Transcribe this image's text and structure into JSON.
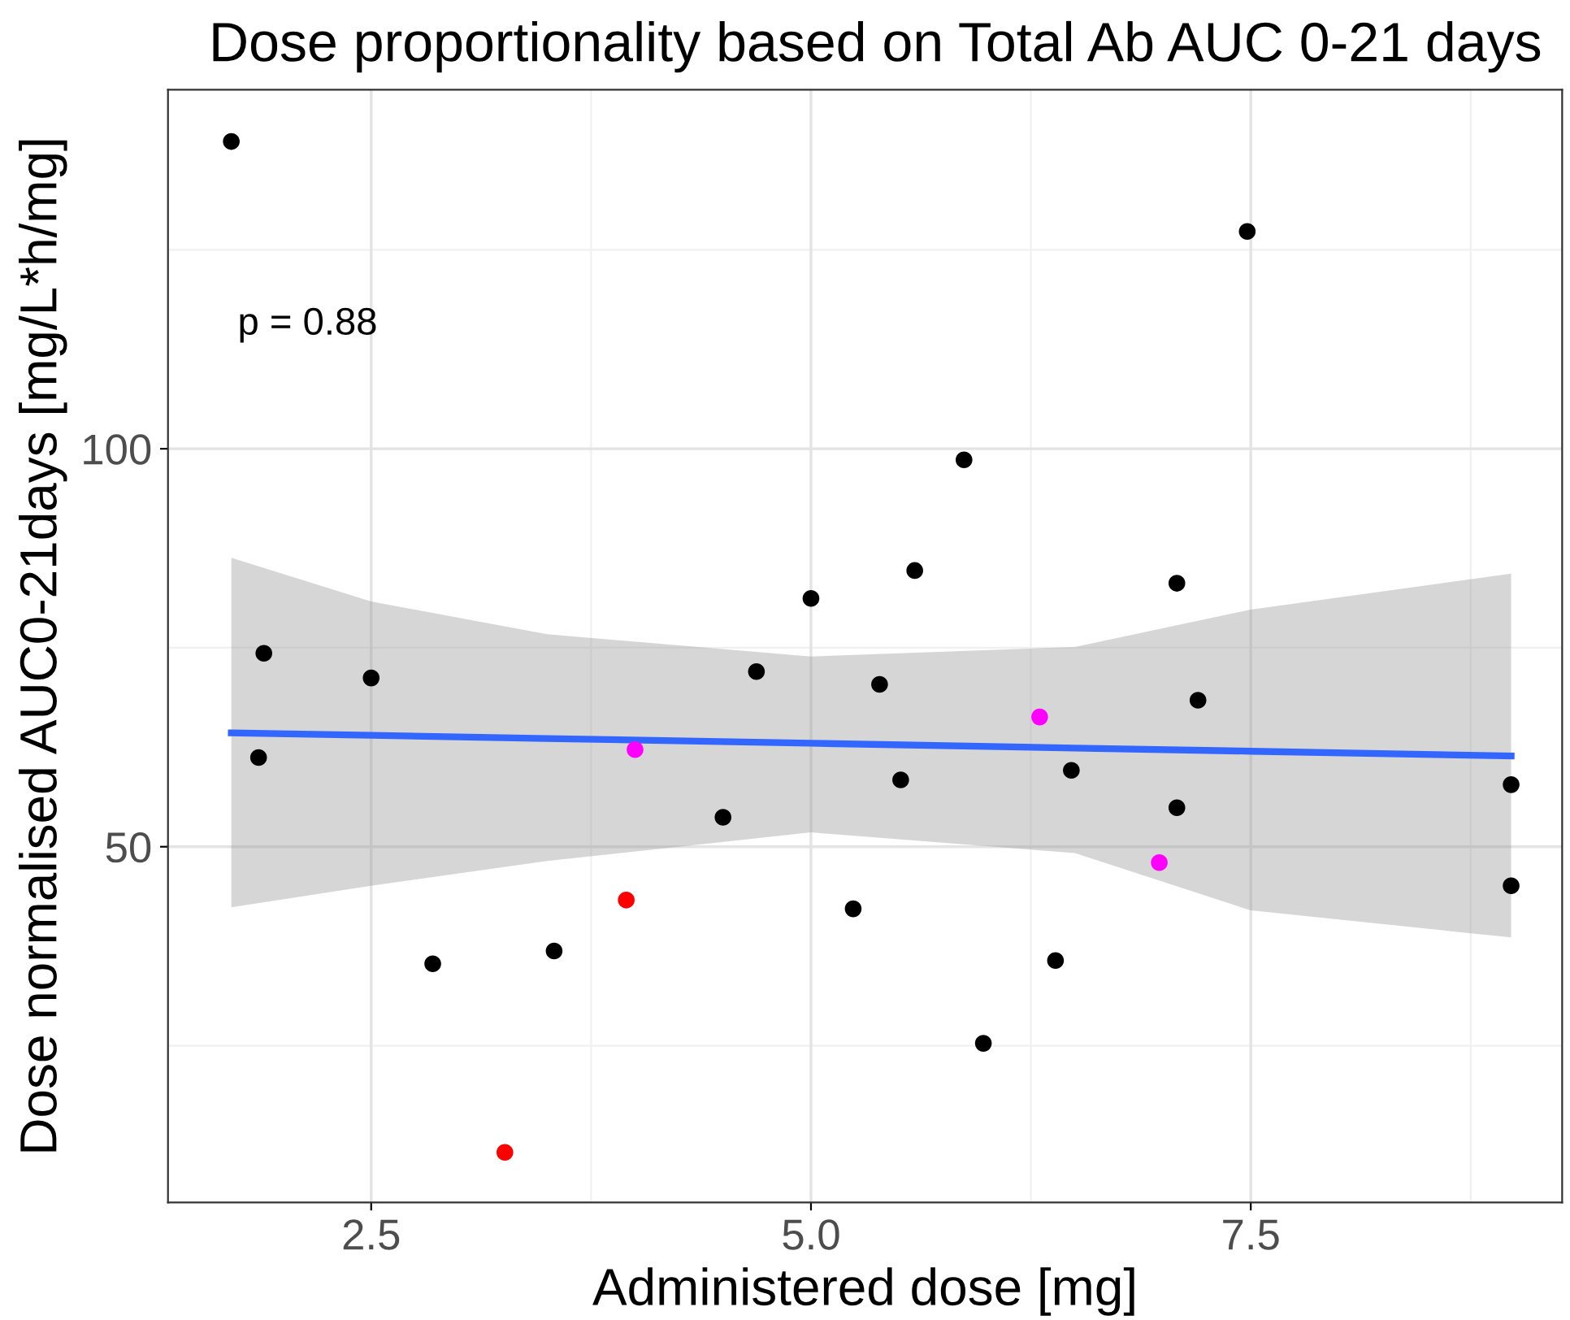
{
  "chart_data": {
    "type": "scatter",
    "title": "Dose proportionality based on Total Ab AUC 0-21 days",
    "xlabel": "Administered dose [mg]",
    "ylabel": "Dose normalised AUC0-21days [mg/L*h/mg]",
    "xlim": [
      1.345,
      9.27
    ],
    "ylim": [
      5.3,
      145.1
    ],
    "xticks": [
      2.5,
      {
        "value": 5,
        "label": "5.0"
      },
      7.5
    ],
    "yticks": [
      50,
      100
    ],
    "grid": true,
    "legend": false,
    "marker": "circle",
    "annotations": [
      "p = 0.88"
    ],
    "series": [
      {
        "type": "line",
        "color": "#3366ff",
        "line_style": "solid",
        "marker": "none",
        "x": [
          1.705,
          2.5,
          3.5,
          5.0,
          6.5,
          7.5,
          8.98
        ],
        "values": [
          64.3,
          64.0,
          63.6,
          63.0,
          62.4,
          62.0,
          61.4
        ],
        "lower": [
          42.4,
          45.1,
          48.2,
          51.8,
          49.2,
          42.0,
          38.6
        ],
        "upper": [
          86.3,
          80.8,
          76.7,
          73.9,
          75.1,
          79.8,
          84.3
        ]
      },
      {
        "color": "#000000",
        "x": [
          1.705,
          7.48,
          5.87,
          5.59,
          7.08,
          5.0,
          1.89,
          2.5,
          4.69,
          5.39,
          7.2,
          1.86,
          6.48,
          5.51,
          8.98,
          7.08,
          4.5,
          8.98,
          5.24,
          3.54,
          2.85,
          6.39,
          5.98
        ],
        "values": [
          138.6,
          127.3,
          98.6,
          84.7,
          83.1,
          81.2,
          74.3,
          71.2,
          72.0,
          70.4,
          68.4,
          61.2,
          59.6,
          58.4,
          57.8,
          54.9,
          53.7,
          45.1,
          42.2,
          36.9,
          35.3,
          35.7,
          25.3
        ]
      },
      {
        "color": "#ff00ff",
        "x": [
          6.3,
          4.0,
          6.98
        ],
        "values": [
          66.3,
          62.2,
          48.0
        ]
      },
      {
        "color": "#ff0000",
        "x": [
          3.95,
          3.26
        ],
        "values": [
          43.3,
          11.6
        ]
      }
    ]
  }
}
